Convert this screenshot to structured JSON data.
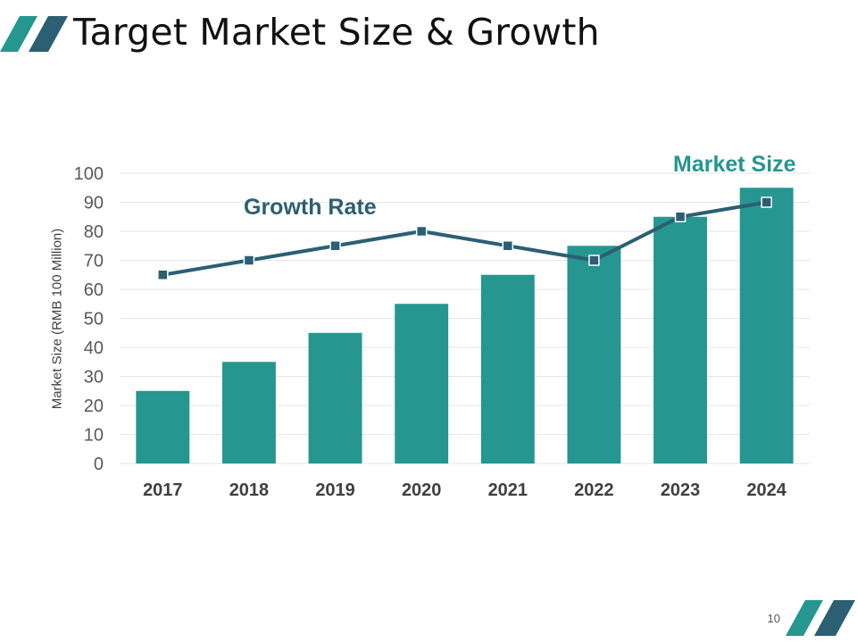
{
  "slide": {
    "title": "Target Market Size & Growth",
    "page_number": "10"
  },
  "colors": {
    "bar": "#259690",
    "line": "#2c5f73",
    "marker": "#2c5f73",
    "decor_teal": "#259690",
    "decor_navy": "#2c5f73",
    "grid": "#e6e6e6"
  },
  "chart_data": {
    "type": "bar",
    "categories": [
      "2017",
      "2018",
      "2019",
      "2020",
      "2021",
      "2022",
      "2023",
      "2024"
    ],
    "series": [
      {
        "name": "Market Size",
        "type": "bar",
        "values": [
          25,
          35,
          45,
          55,
          65,
          75,
          85,
          95
        ]
      },
      {
        "name": "Growth Rate",
        "type": "line",
        "values": [
          65,
          70,
          75,
          80,
          75,
          70,
          85,
          90
        ]
      }
    ],
    "ylabel": "Market Size (RMB 100 Million)",
    "xlabel": "",
    "ylim": [
      0,
      100
    ],
    "ytick_step": 10,
    "yticks": [
      "0",
      "10",
      "20",
      "30",
      "40",
      "50",
      "60",
      "70",
      "80",
      "90",
      "100"
    ],
    "grid": true,
    "legend": "none",
    "series_labels": {
      "market_size": "Market Size",
      "growth_rate": "Growth Rate"
    }
  }
}
